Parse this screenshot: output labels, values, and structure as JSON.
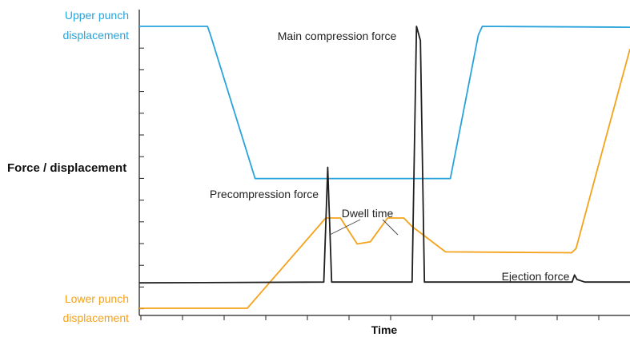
{
  "chart_data": {
    "type": "line",
    "title": "",
    "ylabel": "Force / displacement",
    "xlabel": "Time",
    "grid": false,
    "xlim": [
      0,
      100
    ],
    "ylim": [
      0,
      100
    ],
    "series": [
      {
        "key": "upper",
        "color": "#29a3dc",
        "label_lines": [
          "Upper punch",
          "displacement"
        ],
        "x": [
          0,
          13.9,
          14.5,
          23.6,
          63.4,
          69.1,
          69.9,
          100
        ],
        "y": [
          100,
          100,
          97,
          46,
          46,
          97,
          100,
          99.7
        ]
      },
      {
        "key": "lower",
        "color": "#f5a21b",
        "label_lines": [
          "Lower punch",
          "displacement"
        ],
        "x": [
          0,
          22,
          38,
          41,
          44.4,
          47.1,
          50.6,
          53.9,
          55.6,
          62.4,
          88.1,
          89,
          95,
          100
        ],
        "y": [
          0,
          0,
          32,
          32,
          22.8,
          23.6,
          32,
          32,
          29,
          20,
          19.7,
          21.2,
          60,
          92
        ]
      },
      {
        "key": "force",
        "color": "#1f1f1f",
        "label_lines": [],
        "x": [
          0,
          37.6,
          38.4,
          39.2,
          55.6,
          56.5,
          57.3,
          58.1,
          88.2,
          88.7,
          89.2,
          90.8,
          100
        ],
        "y": [
          9,
          9.3,
          50,
          9.3,
          9.3,
          100,
          95,
          9.3,
          9.3,
          11.8,
          10.2,
          9.3,
          9.3
        ]
      }
    ],
    "annotations": {
      "main": "Main compression force",
      "pre": "Precompression force",
      "dwell": "Dwell time",
      "eject": "Ejection force"
    }
  }
}
